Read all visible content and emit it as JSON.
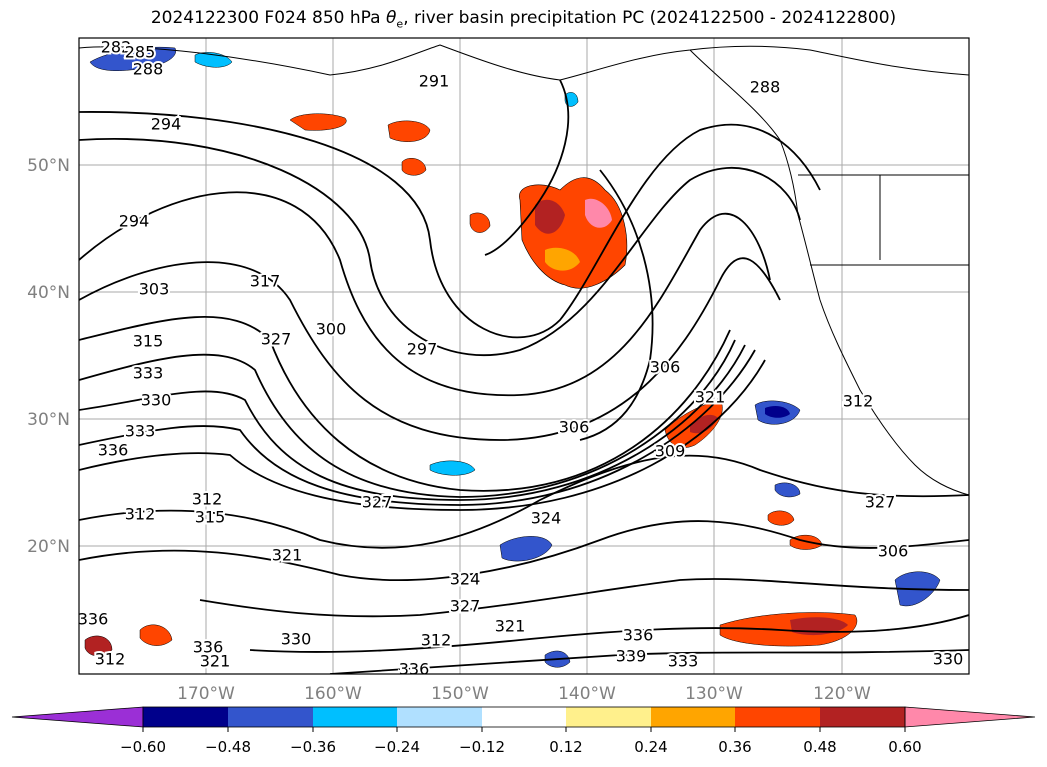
{
  "title": {
    "prefix": "2024122300 F024 850 hPa ",
    "symbol": "θ",
    "subscript": "e",
    "suffix": ", river basin precipitation PC (2024122500 - 2024122800)"
  },
  "map": {
    "lat_ticks": [
      "50°N",
      "40°N",
      "30°N",
      "20°N"
    ],
    "lon_ticks": [
      "170°W",
      "160°W",
      "150°W",
      "140°W",
      "130°W",
      "120°W"
    ],
    "contour_labels": [
      "282",
      "285",
      "288",
      "291",
      "288",
      "294",
      "294",
      "303",
      "317",
      "300",
      "297",
      "315",
      "327",
      "333",
      "330",
      "333",
      "336",
      "306",
      "306",
      "321",
      "309",
      "312",
      "327",
      "312",
      "315",
      "321",
      "324",
      "327",
      "324",
      "321",
      "330",
      "336",
      "339",
      "333",
      "336",
      "321",
      "312",
      "306",
      "327",
      "330",
      "336",
      "336",
      "312",
      "312"
    ]
  },
  "colorbar": {
    "colors": [
      "#9b2fd6",
      "#00008b",
      "#3355cc",
      "#00bfff",
      "#b0e0ff",
      "#ffffff",
      "#fff08c",
      "#ffa500",
      "#ff4500",
      "#b22222",
      "#ff88aa"
    ],
    "tick_labels": [
      "−0.60",
      "−0.48",
      "−0.36",
      "−0.24",
      "−0.12",
      "0.12",
      "0.24",
      "0.36",
      "0.48",
      "0.60"
    ]
  }
}
